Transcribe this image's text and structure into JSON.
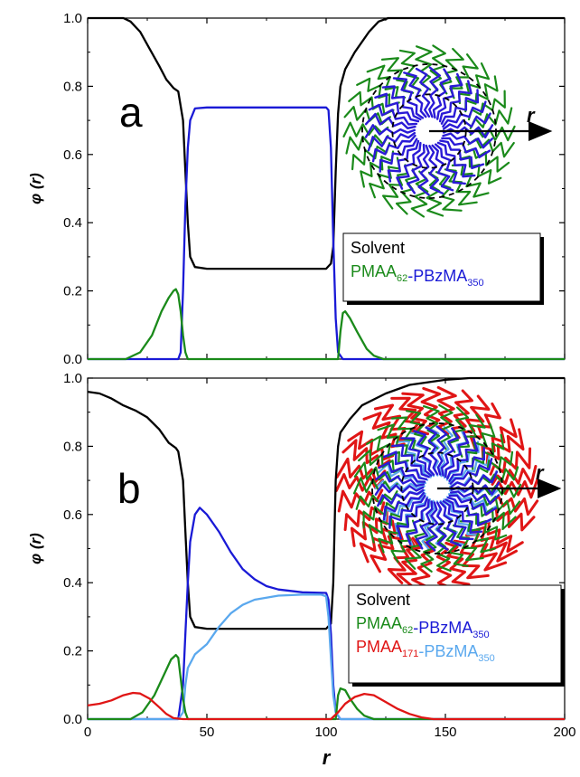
{
  "chart_data": [
    {
      "type": "line",
      "panel_label": "a",
      "xlabel": "",
      "ylabel": "φ (r)",
      "xlim": [
        0,
        200
      ],
      "ylim": [
        0,
        1.0
      ],
      "x_ticks": [
        "0",
        "50",
        "100",
        "150",
        "200"
      ],
      "y_ticks": [
        "0.0",
        "0.2",
        "0.4",
        "0.6",
        "0.8",
        "1.0"
      ],
      "legend": {
        "placement": "right",
        "entries": [
          {
            "parts": [
              {
                "text": "Solvent",
                "color": "#000000"
              }
            ]
          },
          {
            "parts": [
              {
                "text": "PMAA",
                "color": "#1a8a1a"
              },
              {
                "text": "62",
                "color": "#1a8a1a",
                "sub": true
              },
              {
                "text": "-PBzMA",
                "color": "#1a1ad6"
              },
              {
                "text": "350",
                "color": "#1a1ad6",
                "sub": true
              }
            ]
          }
        ]
      },
      "inset_axis_label": "r",
      "series": [
        {
          "color": "#000000",
          "points": [
            [
              0,
              1
            ],
            [
              15,
              1
            ],
            [
              18,
              0.99
            ],
            [
              22,
              0.96
            ],
            [
              26,
              0.91
            ],
            [
              30,
              0.86
            ],
            [
              33,
              0.82
            ],
            [
              36,
              0.795
            ],
            [
              38,
              0.785
            ],
            [
              40,
              0.7
            ],
            [
              41,
              0.55
            ],
            [
              42,
              0.4
            ],
            [
              43,
              0.3
            ],
            [
              45,
              0.27
            ],
            [
              50,
              0.265
            ],
            [
              100,
              0.265
            ],
            [
              102,
              0.28
            ],
            [
              103,
              0.33
            ],
            [
              104,
              0.55
            ],
            [
              105,
              0.72
            ],
            [
              106,
              0.8
            ],
            [
              108,
              0.85
            ],
            [
              112,
              0.9
            ],
            [
              118,
              0.96
            ],
            [
              122,
              0.99
            ],
            [
              126,
              1
            ],
            [
              200,
              1
            ]
          ]
        },
        {
          "color": "#1a1ad6",
          "points": [
            [
              0,
              0
            ],
            [
              38,
              0
            ],
            [
              39,
              0.02
            ],
            [
              40,
              0.2
            ],
            [
              41,
              0.45
            ],
            [
              42,
              0.62
            ],
            [
              43,
              0.7
            ],
            [
              45,
              0.735
            ],
            [
              50,
              0.738
            ],
            [
              100,
              0.738
            ],
            [
              101,
              0.73
            ],
            [
              102,
              0.62
            ],
            [
              103,
              0.35
            ],
            [
              104,
              0.12
            ],
            [
              105,
              0.02
            ],
            [
              107,
              0
            ],
            [
              200,
              0
            ]
          ]
        },
        {
          "color": "#1a8a1a",
          "points": [
            [
              0,
              0
            ],
            [
              16,
              0
            ],
            [
              22,
              0.02
            ],
            [
              27,
              0.07
            ],
            [
              31,
              0.14
            ],
            [
              34,
              0.18
            ],
            [
              36,
              0.2
            ],
            [
              37,
              0.205
            ],
            [
              38,
              0.19
            ],
            [
              39,
              0.14
            ],
            [
              40,
              0.07
            ],
            [
              41,
              0.02
            ],
            [
              42,
              0
            ],
            [
              105,
              0
            ],
            [
              106,
              0.08
            ],
            [
              107,
              0.135
            ],
            [
              108,
              0.14
            ],
            [
              110,
              0.12
            ],
            [
              113,
              0.08
            ],
            [
              117,
              0.03
            ],
            [
              120,
              0.01
            ],
            [
              124,
              0
            ],
            [
              200,
              0
            ]
          ]
        }
      ]
    },
    {
      "type": "line",
      "panel_label": "b",
      "xlabel": "r",
      "ylabel": "φ (r)",
      "xlim": [
        0,
        200
      ],
      "ylim": [
        0,
        1.0
      ],
      "x_ticks": [
        "0",
        "50",
        "100",
        "150",
        "200"
      ],
      "y_ticks": [
        "0.0",
        "0.2",
        "0.4",
        "0.6",
        "0.8",
        "1.0"
      ],
      "legend": {
        "placement": "right",
        "entries": [
          {
            "parts": [
              {
                "text": "Solvent",
                "color": "#000000"
              }
            ]
          },
          {
            "parts": [
              {
                "text": "PMAA",
                "color": "#1a8a1a"
              },
              {
                "text": "62",
                "color": "#1a8a1a",
                "sub": true
              },
              {
                "text": "-PBzMA",
                "color": "#1a1ad6"
              },
              {
                "text": "350",
                "color": "#1a1ad6",
                "sub": true
              }
            ]
          },
          {
            "parts": [
              {
                "text": "PMAA",
                "color": "#e01515"
              },
              {
                "text": "171",
                "color": "#e01515",
                "sub": true
              },
              {
                "text": "-PBzMA",
                "color": "#5aa8ee"
              },
              {
                "text": "350",
                "color": "#5aa8ee",
                "sub": true
              }
            ]
          }
        ]
      },
      "inset_axis_label": "r",
      "series": [
        {
          "color": "#000000",
          "points": [
            [
              0,
              0.96
            ],
            [
              5,
              0.955
            ],
            [
              10,
              0.94
            ],
            [
              15,
              0.92
            ],
            [
              20,
              0.905
            ],
            [
              25,
              0.885
            ],
            [
              30,
              0.85
            ],
            [
              34,
              0.81
            ],
            [
              37,
              0.795
            ],
            [
              38,
              0.785
            ],
            [
              40,
              0.7
            ],
            [
              41,
              0.55
            ],
            [
              42,
              0.4
            ],
            [
              43,
              0.3
            ],
            [
              45,
              0.27
            ],
            [
              50,
              0.265
            ],
            [
              100,
              0.265
            ],
            [
              102,
              0.28
            ],
            [
              103,
              0.4
            ],
            [
              104,
              0.7
            ],
            [
              105,
              0.8
            ],
            [
              106,
              0.84
            ],
            [
              110,
              0.88
            ],
            [
              115,
              0.92
            ],
            [
              125,
              0.955
            ],
            [
              135,
              0.98
            ],
            [
              150,
              0.995
            ],
            [
              160,
              1
            ],
            [
              200,
              1
            ]
          ]
        },
        {
          "color": "#1a1ad6",
          "points": [
            [
              0,
              0
            ],
            [
              38,
              0
            ],
            [
              40,
              0.1
            ],
            [
              41,
              0.25
            ],
            [
              42,
              0.4
            ],
            [
              43,
              0.52
            ],
            [
              45,
              0.6
            ],
            [
              47,
              0.62
            ],
            [
              50,
              0.6
            ],
            [
              55,
              0.55
            ],
            [
              60,
              0.49
            ],
            [
              65,
              0.44
            ],
            [
              70,
              0.41
            ],
            [
              75,
              0.39
            ],
            [
              80,
              0.38
            ],
            [
              90,
              0.372
            ],
            [
              100,
              0.37
            ],
            [
              101,
              0.35
            ],
            [
              102,
              0.25
            ],
            [
              103,
              0.1
            ],
            [
              104,
              0.02
            ],
            [
              106,
              0
            ],
            [
              200,
              0
            ]
          ]
        },
        {
          "color": "#5aa8ee",
          "points": [
            [
              0,
              0
            ],
            [
              38,
              0
            ],
            [
              40,
              0.02
            ],
            [
              41,
              0.1
            ],
            [
              42,
              0.15
            ],
            [
              45,
              0.19
            ],
            [
              50,
              0.22
            ],
            [
              55,
              0.27
            ],
            [
              60,
              0.31
            ],
            [
              65,
              0.335
            ],
            [
              70,
              0.35
            ],
            [
              80,
              0.362
            ],
            [
              90,
              0.365
            ],
            [
              98,
              0.365
            ],
            [
              100,
              0.36
            ],
            [
              101,
              0.3
            ],
            [
              102,
              0.18
            ],
            [
              103,
              0.07
            ],
            [
              104,
              0.02
            ],
            [
              106,
              0
            ],
            [
              200,
              0
            ]
          ]
        },
        {
          "color": "#1a8a1a",
          "points": [
            [
              0,
              0
            ],
            [
              18,
              0
            ],
            [
              23,
              0.02
            ],
            [
              28,
              0.07
            ],
            [
              32,
              0.13
            ],
            [
              35,
              0.175
            ],
            [
              37,
              0.188
            ],
            [
              38,
              0.18
            ],
            [
              39,
              0.12
            ],
            [
              40,
              0.06
            ],
            [
              41,
              0.02
            ],
            [
              42,
              0
            ],
            [
              104,
              0
            ],
            [
              105,
              0.07
            ],
            [
              106,
              0.09
            ],
            [
              108,
              0.085
            ],
            [
              110,
              0.06
            ],
            [
              113,
              0.03
            ],
            [
              116,
              0.01
            ],
            [
              120,
              0
            ],
            [
              200,
              0
            ]
          ]
        },
        {
          "color": "#e01515",
          "points": [
            [
              0,
              0.04
            ],
            [
              5,
              0.045
            ],
            [
              10,
              0.055
            ],
            [
              15,
              0.07
            ],
            [
              19,
              0.077
            ],
            [
              22,
              0.075
            ],
            [
              26,
              0.06
            ],
            [
              30,
              0.035
            ],
            [
              33,
              0.015
            ],
            [
              36,
              0.003
            ],
            [
              40,
              0
            ],
            [
              102,
              0
            ],
            [
              105,
              0.02
            ],
            [
              108,
              0.045
            ],
            [
              112,
              0.065
            ],
            [
              116,
              0.074
            ],
            [
              120,
              0.07
            ],
            [
              125,
              0.05
            ],
            [
              130,
              0.03
            ],
            [
              135,
              0.015
            ],
            [
              140,
              0.005
            ],
            [
              145,
              0
            ],
            [
              200,
              0
            ]
          ]
        }
      ]
    }
  ]
}
